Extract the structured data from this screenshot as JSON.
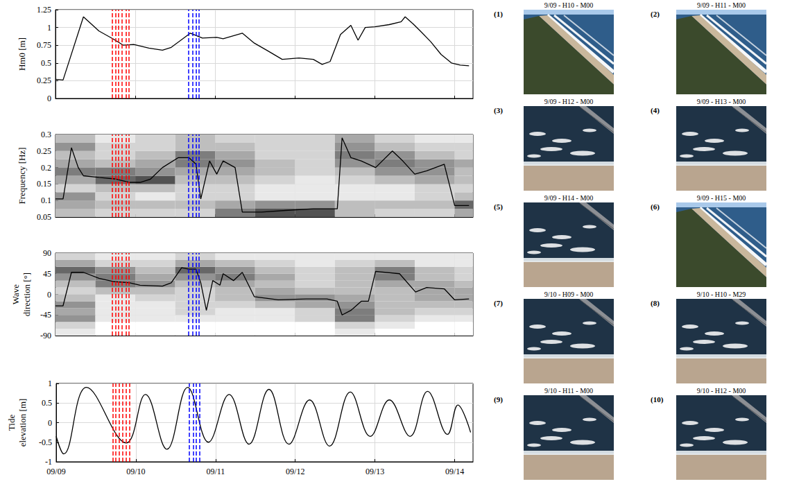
{
  "chart_data": [
    {
      "type": "line",
      "ylabel": "Hm0 [m]",
      "color": "#000000",
      "line_style": "solid",
      "x": [
        0,
        0.095,
        0.35,
        0.545,
        0.72,
        0.85,
        0.98,
        1.17,
        1.34,
        1.45,
        1.69,
        1.84,
        2.02,
        2.1,
        2.34,
        2.49,
        2.66,
        2.84,
        3.05,
        3.23,
        3.34,
        3.44,
        3.57,
        3.7,
        3.79,
        3.88,
        4.0,
        4.18,
        4.33,
        4.38,
        4.48,
        4.57,
        4.7,
        4.83,
        4.96,
        5.07,
        5.18
      ],
      "values": [
        0.27,
        0.26,
        1.15,
        0.95,
        0.84,
        0.75,
        0.76,
        0.71,
        0.68,
        0.72,
        0.92,
        0.85,
        0.86,
        0.84,
        0.92,
        0.78,
        0.67,
        0.55,
        0.57,
        0.55,
        0.48,
        0.52,
        0.9,
        1.03,
        0.82,
        1.0,
        1.01,
        1.04,
        1.08,
        1.15,
        1.05,
        0.95,
        0.8,
        0.62,
        0.5,
        0.47,
        0.46
      ],
      "xlim": [
        0,
        5.23
      ],
      "xticks": [
        {
          "value": 0,
          "label": "09/09"
        },
        {
          "value": 1,
          "label": "09/10"
        },
        {
          "value": 2,
          "label": "09/11"
        },
        {
          "value": 3,
          "label": "09/12"
        },
        {
          "value": 4,
          "label": "09/13"
        },
        {
          "value": 5,
          "label": "09/14"
        }
      ],
      "ylim": [
        0,
        1.25
      ],
      "yticks": [
        0,
        0.25,
        0.5,
        0.75,
        1,
        1.25
      ],
      "grid": true,
      "tick_labels": "y",
      "vertical_lines": [
        {
          "color": "#ff0000",
          "line_style": "dashed",
          "x": [
            0.71,
            0.752,
            0.793,
            0.835,
            0.877,
            0.918
          ]
        },
        {
          "color": "#0000ff",
          "line_style": "dashed",
          "x": [
            1.67,
            1.715,
            1.76,
            1.805
          ]
        }
      ]
    },
    {
      "type": "line",
      "ylabel": "Frequency [Hz]",
      "color": "#000000",
      "line_style": "solid",
      "x": [
        0,
        0.095,
        0.2,
        0.285,
        0.35,
        0.545,
        0.76,
        0.93,
        1.06,
        1.19,
        1.34,
        1.54,
        1.67,
        1.76,
        1.82,
        1.93,
        2.02,
        2.1,
        2.25,
        2.34,
        2.58,
        2.88,
        3.23,
        3.53,
        3.59,
        3.7,
        3.83,
        4.01,
        4.22,
        4.35,
        4.5,
        4.65,
        4.87,
        5.0,
        5.18
      ],
      "values": [
        0.105,
        0.105,
        0.26,
        0.2,
        0.175,
        0.17,
        0.165,
        0.155,
        0.155,
        0.165,
        0.2,
        0.23,
        0.23,
        0.21,
        0.105,
        0.22,
        0.18,
        0.22,
        0.2,
        0.065,
        0.065,
        0.07,
        0.075,
        0.075,
        0.29,
        0.23,
        0.22,
        0.2,
        0.25,
        0.22,
        0.18,
        0.19,
        0.21,
        0.085,
        0.085
      ],
      "cells": {
        "x_edges": [
          0,
          0.5,
          1,
          1.5,
          2,
          2.5,
          3,
          3.5,
          4,
          4.5,
          5,
          5.23
        ],
        "y_edges": [
          0.05,
          0.075,
          0.1,
          0.125,
          0.15,
          0.175,
          0.2,
          0.225,
          0.25,
          0.275,
          0.3
        ],
        "values": [
          [
            0.3,
            0.2,
            0.2,
            0.2,
            0.6,
            0.8,
            0.8,
            0.3,
            0.2,
            0.2,
            0.4
          ],
          [
            0.4,
            0.3,
            0.3,
            0.3,
            0.4,
            0.5,
            0.5,
            0.3,
            0.3,
            0.3,
            0.7
          ],
          [
            0.5,
            0.2,
            0.1,
            0.2,
            0.2,
            0.1,
            0.1,
            0.1,
            0.1,
            0.2,
            0.3
          ],
          [
            0.2,
            0.3,
            0.3,
            0.2,
            0.2,
            0.1,
            0.1,
            0.1,
            0.1,
            0.2,
            0.2
          ],
          [
            0.4,
            0.7,
            0.8,
            0.3,
            0.3,
            0.2,
            0.1,
            0.2,
            0.3,
            0.4,
            0.3
          ],
          [
            0.6,
            0.6,
            0.5,
            0.4,
            0.4,
            0.3,
            0.2,
            0.3,
            0.5,
            0.5,
            0.3
          ],
          [
            0.4,
            0.3,
            0.4,
            0.6,
            0.5,
            0.3,
            0.2,
            0.5,
            0.6,
            0.5,
            0.4
          ],
          [
            0.3,
            0.2,
            0.3,
            0.6,
            0.4,
            0.2,
            0.2,
            0.6,
            0.5,
            0.3,
            0.2
          ],
          [
            0.5,
            0.2,
            0.2,
            0.3,
            0.3,
            0.2,
            0.2,
            0.5,
            0.3,
            0.2,
            0.2
          ],
          [
            0.3,
            0.1,
            0.2,
            0.3,
            0.2,
            0.2,
            0.2,
            0.4,
            0.2,
            0.1,
            0.1
          ]
        ]
      },
      "xlim": [
        0,
        5.23
      ],
      "xticks": [
        {
          "value": 0,
          "label": "09/09"
        },
        {
          "value": 1,
          "label": "09/10"
        },
        {
          "value": 2,
          "label": "09/11"
        },
        {
          "value": 3,
          "label": "09/12"
        },
        {
          "value": 4,
          "label": "09/13"
        },
        {
          "value": 5,
          "label": "09/14"
        }
      ],
      "ylim": [
        0.05,
        0.3
      ],
      "yticks": [
        0.05,
        0.1,
        0.15,
        0.2,
        0.25,
        0.3
      ],
      "grid": true,
      "tick_labels": "y",
      "vertical_lines": [
        {
          "color": "#ff0000",
          "line_style": "dashed",
          "x": [
            0.71,
            0.752,
            0.793,
            0.835,
            0.877,
            0.918
          ]
        },
        {
          "color": "#0000ff",
          "line_style": "dashed",
          "x": [
            1.67,
            1.715,
            1.76,
            1.805
          ]
        }
      ]
    },
    {
      "type": "line",
      "ylabel": "Wave direction [°]",
      "color": "#000000",
      "line_style": "solid",
      "x": [
        0,
        0.095,
        0.2,
        0.35,
        0.545,
        0.72,
        0.93,
        1.06,
        1.34,
        1.45,
        1.58,
        1.67,
        1.76,
        1.82,
        1.89,
        1.97,
        2.06,
        2.1,
        2.23,
        2.34,
        2.49,
        2.79,
        3.14,
        3.4,
        3.53,
        3.59,
        3.7,
        3.83,
        3.92,
        4.01,
        4.31,
        4.51,
        4.65,
        4.87,
        5.0,
        5.18
      ],
      "values": [
        -25,
        -25,
        48,
        48,
        35,
        28,
        25,
        20,
        18,
        25,
        58,
        55,
        55,
        25,
        -35,
        30,
        20,
        45,
        30,
        48,
        -5,
        -12,
        -10,
        -10,
        -15,
        -45,
        -35,
        -15,
        -15,
        50,
        45,
        5,
        15,
        12,
        -12,
        -10
      ],
      "cells": {
        "x_edges": [
          0,
          0.5,
          1,
          1.5,
          2,
          2.5,
          3,
          3.5,
          4,
          4.5,
          5,
          5.23
        ],
        "y_edges": [
          -90,
          -75,
          -60,
          -45,
          -30,
          -15,
          0,
          15,
          30,
          45,
          60,
          75,
          90
        ],
        "values": [
          [
            0.1,
            0,
            0,
            0,
            0,
            0,
            0,
            0.1,
            0,
            0,
            0
          ],
          [
            0.2,
            0,
            0,
            0,
            0,
            0,
            0,
            0.2,
            0.1,
            0,
            0
          ],
          [
            0.5,
            0.1,
            0.1,
            0.1,
            0.1,
            0.1,
            0.2,
            0.6,
            0.2,
            0.1,
            0.1
          ],
          [
            0.4,
            0.1,
            0.1,
            0.2,
            0.1,
            0.1,
            0.2,
            0.6,
            0.3,
            0.2,
            0.2
          ],
          [
            0.5,
            0.1,
            0.1,
            0.2,
            0.2,
            0.3,
            0.4,
            0.5,
            0.3,
            0.3,
            0.3
          ],
          [
            0.3,
            0.1,
            0.2,
            0.2,
            0.3,
            0.5,
            0.5,
            0.4,
            0.3,
            0.4,
            0.4
          ],
          [
            0.2,
            0.3,
            0.3,
            0.2,
            0.3,
            0.4,
            0.3,
            0.3,
            0.3,
            0.4,
            0.4
          ],
          [
            0.3,
            0.6,
            0.5,
            0.3,
            0.4,
            0.3,
            0.2,
            0.3,
            0.4,
            0.4,
            0.3
          ],
          [
            0.5,
            0.6,
            0.4,
            0.5,
            0.6,
            0.4,
            0.2,
            0.3,
            0.6,
            0.3,
            0.2
          ],
          [
            0.7,
            0.5,
            0.3,
            0.7,
            0.5,
            0.3,
            0.2,
            0.3,
            0.6,
            0.3,
            0.2
          ],
          [
            0.4,
            0.2,
            0.2,
            0.4,
            0.3,
            0.2,
            0.1,
            0.2,
            0.3,
            0.1,
            0.1
          ],
          [
            0.2,
            0.1,
            0.1,
            0.2,
            0.1,
            0.1,
            0.1,
            0.1,
            0.1,
            0.1,
            0.1
          ]
        ]
      },
      "xlim": [
        0,
        5.23
      ],
      "xticks": [
        {
          "value": 0,
          "label": "09/09"
        },
        {
          "value": 1,
          "label": "09/10"
        },
        {
          "value": 2,
          "label": "09/11"
        },
        {
          "value": 3,
          "label": "09/12"
        },
        {
          "value": 4,
          "label": "09/13"
        },
        {
          "value": 5,
          "label": "09/14"
        }
      ],
      "ylim": [
        -90,
        90
      ],
      "yticks": [
        -90,
        -45,
        0,
        45,
        90
      ],
      "grid": true,
      "tick_labels": "y",
      "vertical_lines": [
        {
          "color": "#ff0000",
          "line_style": "dashed",
          "x": [
            0.71,
            0.752,
            0.793,
            0.835,
            0.877,
            0.918
          ]
        },
        {
          "color": "#0000ff",
          "line_style": "dashed",
          "x": [
            1.67,
            1.715,
            1.76,
            1.805
          ]
        }
      ]
    },
    {
      "type": "line",
      "ylabel": "Tide elevation [m]",
      "color": "#000000",
      "line_style": "smooth",
      "x": [
        0,
        0.095,
        0.38,
        0.88,
        1.12,
        1.39,
        1.65,
        1.91,
        2.17,
        2.42,
        2.67,
        2.92,
        3.18,
        3.43,
        3.69,
        3.94,
        4.18,
        4.44,
        4.66,
        4.91,
        5.04,
        5.2
      ],
      "values": [
        -0.35,
        -0.8,
        0.9,
        -0.52,
        0.72,
        -0.68,
        0.9,
        -0.5,
        0.72,
        -0.55,
        0.85,
        -0.55,
        0.58,
        -0.6,
        0.78,
        -0.35,
        0.58,
        -0.35,
        0.8,
        -0.3,
        0.45,
        -0.25
      ],
      "xlim": [
        0,
        5.23
      ],
      "xticks": [
        {
          "value": 0,
          "label": "09/09"
        },
        {
          "value": 1,
          "label": "09/10"
        },
        {
          "value": 2,
          "label": "09/11"
        },
        {
          "value": 3,
          "label": "09/12"
        },
        {
          "value": 4,
          "label": "09/13"
        },
        {
          "value": 5,
          "label": "09/14"
        }
      ],
      "ylim": [
        -1,
        1
      ],
      "yticks": [
        -1,
        -0.5,
        0,
        0.5,
        1
      ],
      "grid": true,
      "vertical_lines": [
        {
          "color": "#ff0000",
          "line_style": "dashed",
          "x": [
            0.71,
            0.752,
            0.793,
            0.835,
            0.877,
            0.918
          ]
        },
        {
          "color": "#0000ff",
          "line_style": "dashed",
          "x": [
            1.67,
            1.715,
            1.76,
            1.805
          ]
        }
      ]
    }
  ],
  "images": [
    {
      "label": "(1)",
      "caption": "9/09 - H10 - M00"
    },
    {
      "label": "(2)",
      "caption": "9/09 - H11 - M00"
    },
    {
      "label": "(3)",
      "caption": "9/09 - H12 - M00"
    },
    {
      "label": "(4)",
      "caption": "9/09 - H13 - M00"
    },
    {
      "label": "(5)",
      "caption": "9/09 - H14 - M00"
    },
    {
      "label": "(6)",
      "caption": "9/09 - H15 - M00"
    },
    {
      "label": "(7)",
      "caption": "9/10 - H09 - M00"
    },
    {
      "label": "(8)",
      "caption": "9/10 - H10 - M29"
    },
    {
      "label": "(9)",
      "caption": "9/10 - H11 - M00"
    },
    {
      "label": "(10)",
      "caption": "9/10 - H12 - M00"
    }
  ]
}
